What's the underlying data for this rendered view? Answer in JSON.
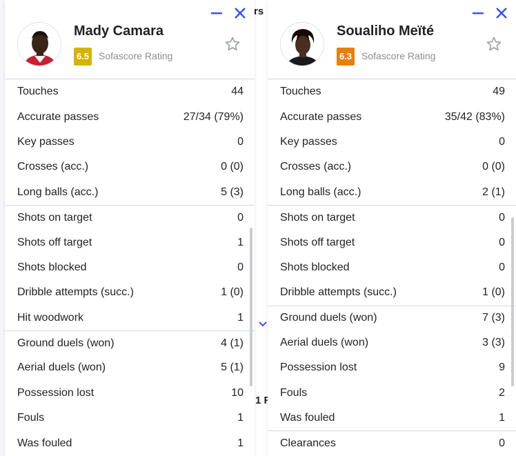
{
  "background": {
    "fragment_top": "rs",
    "fragment_mid": "1 F"
  },
  "colors": {
    "accent": "#374df5",
    "rating_yellow": "#d5b300",
    "rating_orange": "#e8800b"
  },
  "panels": [
    {
      "player_name": "Mady Camara",
      "rating": "6.5",
      "rating_label": "Sofascore Rating",
      "rating_color": "#d5b300",
      "stats": [
        {
          "label": "Touches",
          "value": "44",
          "group_start": false
        },
        {
          "label": "Accurate passes",
          "value": "27/34 (79%)",
          "group_start": false
        },
        {
          "label": "Key passes",
          "value": "0",
          "group_start": false
        },
        {
          "label": "Crosses (acc.)",
          "value": "0 (0)",
          "group_start": false
        },
        {
          "label": "Long balls (acc.)",
          "value": "5 (3)",
          "group_start": false
        },
        {
          "label": "Shots on target",
          "value": "0",
          "group_start": true
        },
        {
          "label": "Shots off target",
          "value": "1",
          "group_start": false
        },
        {
          "label": "Shots blocked",
          "value": "0",
          "group_start": false
        },
        {
          "label": "Dribble attempts (succ.)",
          "value": "1 (0)",
          "group_start": false
        },
        {
          "label": "Hit woodwork",
          "value": "1",
          "group_start": false
        },
        {
          "label": "Ground duels (won)",
          "value": "4 (1)",
          "group_start": true
        },
        {
          "label": "Aerial duels (won)",
          "value": "5 (1)",
          "group_start": false
        },
        {
          "label": "Possession lost",
          "value": "10",
          "group_start": false
        },
        {
          "label": "Fouls",
          "value": "1",
          "group_start": false
        },
        {
          "label": "Was fouled",
          "value": "1",
          "group_start": false
        }
      ]
    },
    {
      "player_name": "Soualiho Meïté",
      "rating": "6.3",
      "rating_label": "Sofascore Rating",
      "rating_color": "#e8800b",
      "stats": [
        {
          "label": "Touches",
          "value": "49",
          "group_start": false
        },
        {
          "label": "Accurate passes",
          "value": "35/42 (83%)",
          "group_start": false
        },
        {
          "label": "Key passes",
          "value": "0",
          "group_start": false
        },
        {
          "label": "Crosses (acc.)",
          "value": "0 (0)",
          "group_start": false
        },
        {
          "label": "Long balls (acc.)",
          "value": "2 (1)",
          "group_start": false
        },
        {
          "label": "Shots on target",
          "value": "0",
          "group_start": true
        },
        {
          "label": "Shots off target",
          "value": "0",
          "group_start": false
        },
        {
          "label": "Shots blocked",
          "value": "0",
          "group_start": false
        },
        {
          "label": "Dribble attempts (succ.)",
          "value": "1 (0)",
          "group_start": false
        },
        {
          "label": "Ground duels (won)",
          "value": "7 (3)",
          "group_start": true
        },
        {
          "label": "Aerial duels (won)",
          "value": "3 (3)",
          "group_start": false
        },
        {
          "label": "Possession lost",
          "value": "9",
          "group_start": false
        },
        {
          "label": "Fouls",
          "value": "2",
          "group_start": false
        },
        {
          "label": "Was fouled",
          "value": "1",
          "group_start": false
        },
        {
          "label": "Clearances",
          "value": "0",
          "group_start": true
        }
      ]
    }
  ],
  "icons": {
    "minimize": "minimize-icon",
    "close": "close-icon",
    "favorite": "star-icon",
    "expand": "chevron-down-icon"
  }
}
